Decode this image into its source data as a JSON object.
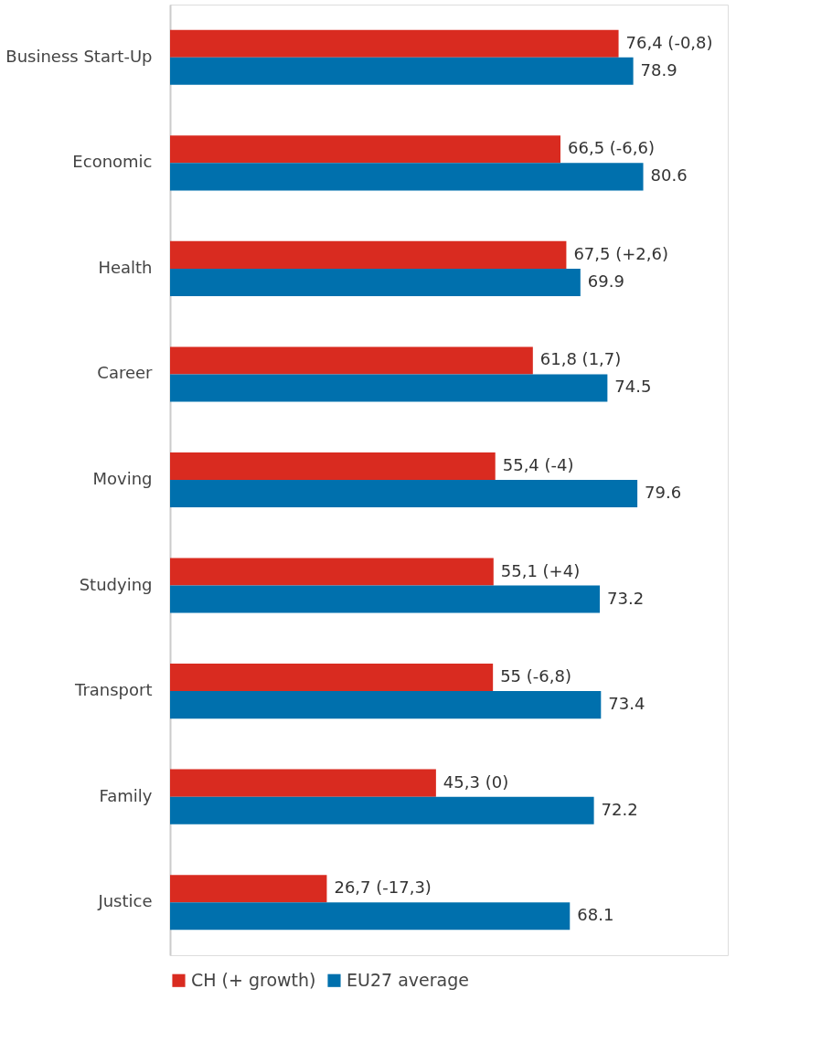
{
  "chart_data": {
    "type": "bar",
    "orientation": "horizontal",
    "categories": [
      "Business Start-Up",
      "Economic",
      "Health",
      "Career",
      "Moving",
      "Studying",
      "Transport",
      "Family",
      "Justice"
    ],
    "series": [
      {
        "name": "CH (+ growth)",
        "color": "#d92b20",
        "values": [
          76.4,
          66.5,
          67.5,
          61.8,
          55.4,
          55.1,
          55,
          45.3,
          26.7
        ],
        "value_labels": [
          "76,4 (-0,8)",
          "66,5 (-6,6)",
          "67,5 (+2,6)",
          "61,8 (1,7)",
          "55,4 (-4)",
          "55,1 (+4)",
          "55 (-6,8)",
          "45,3 (0)",
          "26,7 (-17,3)"
        ]
      },
      {
        "name": "EU27 average",
        "color": "#0070ad",
        "values": [
          78.9,
          80.6,
          69.9,
          74.5,
          79.6,
          73.2,
          73.4,
          72.2,
          68.1
        ],
        "value_labels": [
          "78.9",
          "80.6",
          "69.9",
          "74.5",
          "79.6",
          "73.2",
          "73.4",
          "72.2",
          "68.1"
        ]
      }
    ],
    "xlim": [
      0,
      95
    ],
    "tick_labels": "y",
    "legend": "bottom"
  }
}
